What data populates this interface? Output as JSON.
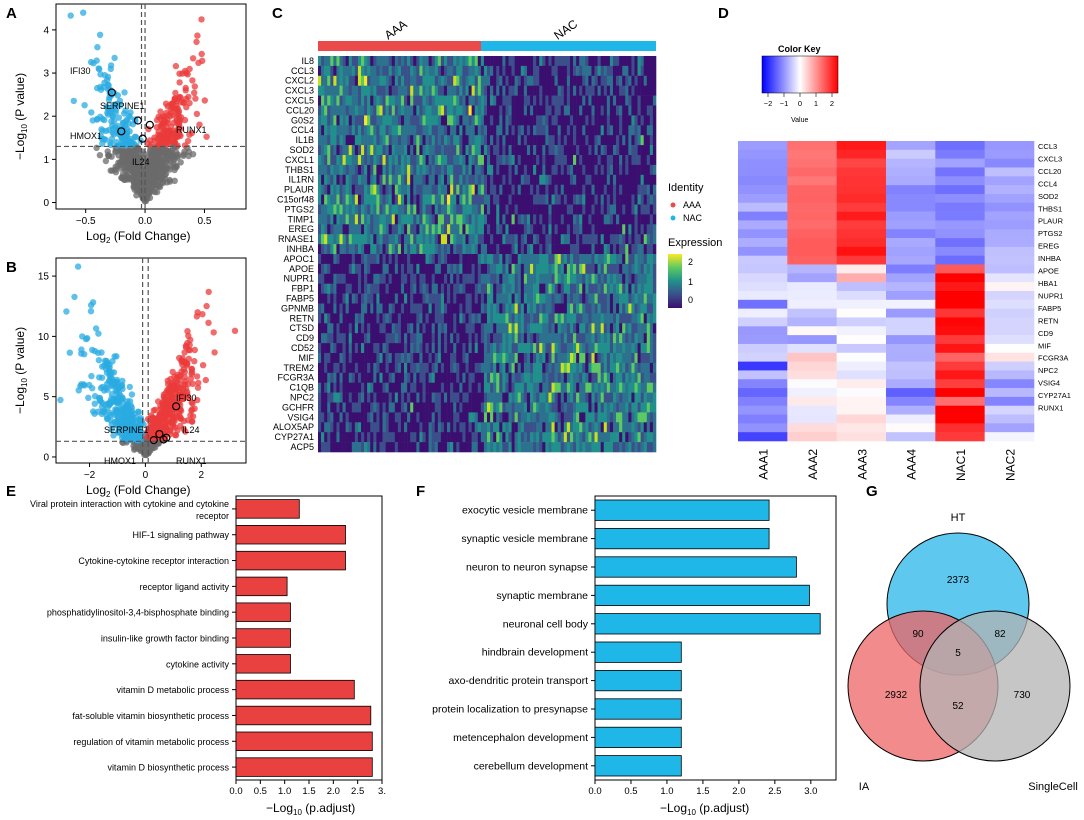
{
  "panels": [
    "A",
    "B",
    "C",
    "D",
    "E",
    "F",
    "G"
  ],
  "chart_data": [
    {
      "panel": "A",
      "type": "scatter",
      "title": "",
      "xlabel": "Log2 (Fold Change)",
      "ylabel": "-Log10 (P value)",
      "xlim": [
        -0.75,
        0.85
      ],
      "ylim": [
        -0.15,
        4.6
      ],
      "xticks": [
        -0.5,
        0.0,
        0.5
      ],
      "xtick_labels": [
        "−0.5",
        "0.0",
        "0.5"
      ],
      "yticks": [
        0,
        1,
        2,
        3,
        4
      ],
      "ytick_labels": [
        "0",
        "1",
        "2",
        "3",
        "4"
      ],
      "threshold_y": 1.3,
      "threshold_x": [
        -0.03,
        0.0
      ],
      "colors": {
        "down": "#29abe2",
        "up": "#eb3b3b",
        "ns": "#6b6b6b"
      },
      "labeled_points": [
        {
          "label": "IFI30",
          "x": -0.28,
          "y": 2.55
        },
        {
          "label": "SERPINE1",
          "x": -0.06,
          "y": 1.9
        },
        {
          "label": "RUNX1",
          "x": 0.04,
          "y": 1.8
        },
        {
          "label": "HMOX1",
          "x": -0.2,
          "y": 1.65
        },
        {
          "label": "IL24",
          "x": -0.02,
          "y": 1.48
        }
      ]
    },
    {
      "panel": "B",
      "type": "scatter",
      "title": "",
      "xlabel": "Log2 (Fold Change)",
      "ylabel": "-Log10 (P value)",
      "xlim": [
        -3.2,
        3.6
      ],
      "ylim": [
        -0.5,
        16.5
      ],
      "xticks": [
        -2,
        0,
        2
      ],
      "xtick_labels": [
        "−2",
        "0",
        "2"
      ],
      "yticks": [
        0,
        5,
        10,
        15
      ],
      "ytick_labels": [
        "0",
        "5",
        "10",
        "15"
      ],
      "threshold_y": 1.3,
      "threshold_x": [
        -0.1,
        0.1
      ],
      "colors": {
        "down": "#29abe2",
        "up": "#eb3b3b",
        "ns": "#6b6b6b"
      },
      "labeled_points": [
        {
          "label": "IFI30",
          "x": 1.1,
          "y": 4.2
        },
        {
          "label": "SERPINE1",
          "x": 0.5,
          "y": 1.9
        },
        {
          "label": "IL24",
          "x": 0.75,
          "y": 1.6
        },
        {
          "label": "HMOX1",
          "x": 0.3,
          "y": 1.4
        },
        {
          "label": "RUNX1",
          "x": 0.65,
          "y": 1.45
        }
      ]
    },
    {
      "panel": "C",
      "type": "heatmap",
      "title": "",
      "groups": [
        "AAA",
        "NAC"
      ],
      "genes": [
        "IL8",
        "CCL3",
        "CXCL2",
        "CXCL3",
        "CXCL5",
        "CCL20",
        "G0S2",
        "CCL4",
        "IL1B",
        "SOD2",
        "CXCL1",
        "THBS1",
        "IL1RN",
        "PLAUR",
        "C15orf48",
        "PTGS2",
        "TIMP1",
        "EREG",
        "RNASE1",
        "INHBA",
        "APOC1",
        "APOE",
        "NUPR1",
        "FBP1",
        "FABP5",
        "GPNMB",
        "RETN",
        "CTSD",
        "CD9",
        "CD52",
        "MIF",
        "TREM2",
        "FCGR3A",
        "C1QB",
        "NPC2",
        "GCHFR",
        "VSIG4",
        "ALOX5AP",
        "CYP27A1",
        "ACP5"
      ],
      "legend": {
        "identity_title": "Identity",
        "identity_items": [
          {
            "label": "AAA",
            "color": "#eb4a4a"
          },
          {
            "label": "NAC",
            "color": "#1fb6e8"
          }
        ],
        "expression_title": "Expression",
        "expression_ticks": [
          "2",
          "1",
          "0"
        ]
      }
    },
    {
      "panel": "D",
      "type": "heatmap",
      "title": "Color Key",
      "color_key_ticks": [
        "−2",
        "−1",
        "0",
        "1",
        "2"
      ],
      "color_key_label": "Value",
      "columns": [
        "AAA1",
        "AAA2",
        "AAA3",
        "AAA4",
        "NAC1",
        "NAC2"
      ],
      "genes": [
        "CCL3",
        "CXCL3",
        "CCL20",
        "CCL4",
        "SOD2",
        "THBS1",
        "PLAUR",
        "PTGS2",
        "EREG",
        "INHBA",
        "APOE",
        "HBA1",
        "NUPR1",
        "FABP5",
        "RETN",
        "CD9",
        "MIF",
        "FCGR3A",
        "NPC2",
        "VSIG4",
        "CYP27A1",
        "RUNX1"
      ]
    },
    {
      "panel": "E",
      "type": "bar",
      "orientation": "horizontal",
      "xlabel": "-Log10 (p.adjust)",
      "xlim": [
        0,
        3.0
      ],
      "xtick_labels": [
        "0.0",
        "0.5",
        "1.0",
        "1.5",
        "2.0",
        "2.5",
        "3."
      ],
      "color": "#e94040",
      "categories": [
        "Viral protein interaction with cytokine and cytokine receptor",
        "HIF-1 signaling pathway",
        "Cytokine-cytokine receptor interaction",
        "receptor ligand activity",
        "phosphatidylinositol-3,4-bisphosphate binding",
        "insulin-like growth factor binding",
        "cytokine activity",
        "vitamin D metabolic process",
        "fat-soluble vitamin biosynthetic process",
        "regulation of vitamin metabolic process",
        "vitamin D biosynthetic process"
      ],
      "values": [
        1.3,
        2.25,
        2.25,
        1.05,
        1.12,
        1.12,
        1.12,
        2.43,
        2.77,
        2.8,
        2.8
      ]
    },
    {
      "panel": "F",
      "type": "bar",
      "orientation": "horizontal",
      "xlabel": "-Log10 (p.adjust)",
      "xlim": [
        0,
        3.35
      ],
      "xtick_labels": [
        "0.0",
        "0.5",
        "1.0",
        "1.5",
        "2.0",
        "2.5",
        "3.0"
      ],
      "color": "#1fb6e8",
      "categories": [
        "exocytic vesicle membrane",
        "synaptic vesicle membrane",
        "neuron to neuron synapse",
        "synaptic membrane",
        "neuronal cell body",
        "hindbrain development",
        "axo-dendritic protein transport",
        "protein localization to presynapse",
        "metencephalon development",
        "cerebellum development"
      ],
      "values": [
        2.42,
        2.42,
        2.8,
        2.98,
        3.13,
        1.2,
        1.2,
        1.2,
        1.2,
        1.2
      ]
    },
    {
      "panel": "G",
      "type": "venn",
      "sets": [
        {
          "name": "HT",
          "color": "#29b6e8"
        },
        {
          "name": "IA",
          "color": "#ee6464"
        },
        {
          "name": "SingleCell",
          "color": "#b3b3b3"
        }
      ],
      "regions": {
        "HT_only": "2373",
        "IA_only": "2932",
        "SingleCell_only": "730",
        "HT_IA": "90",
        "HT_SingleCell": "82",
        "IA_SingleCell": "52",
        "all_three": "5"
      }
    }
  ]
}
